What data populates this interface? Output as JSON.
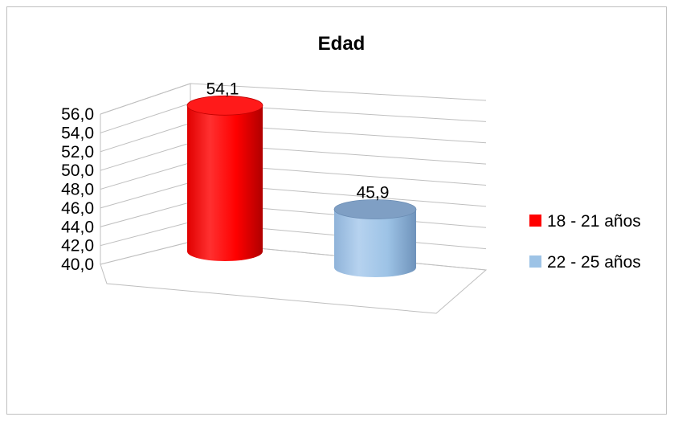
{
  "chart_data": {
    "type": "bar",
    "title": "Edad",
    "categories": [
      "18 - 21 años",
      "22 - 25 años"
    ],
    "series": [
      {
        "name": "18 - 21 años",
        "value": 54.1,
        "label": "54,1",
        "color": "#ff0000"
      },
      {
        "name": "22 - 25 años",
        "value": 45.9,
        "label": "45,9",
        "color": "#9dc3e6"
      }
    ],
    "ylim": [
      40,
      56
    ],
    "yticks": [
      "40,0",
      "42,0",
      "44,0",
      "46,0",
      "48,0",
      "50,0",
      "52,0",
      "54,0",
      "56,0"
    ],
    "grid": true,
    "legend": "right",
    "style": "3d-cylinder"
  }
}
